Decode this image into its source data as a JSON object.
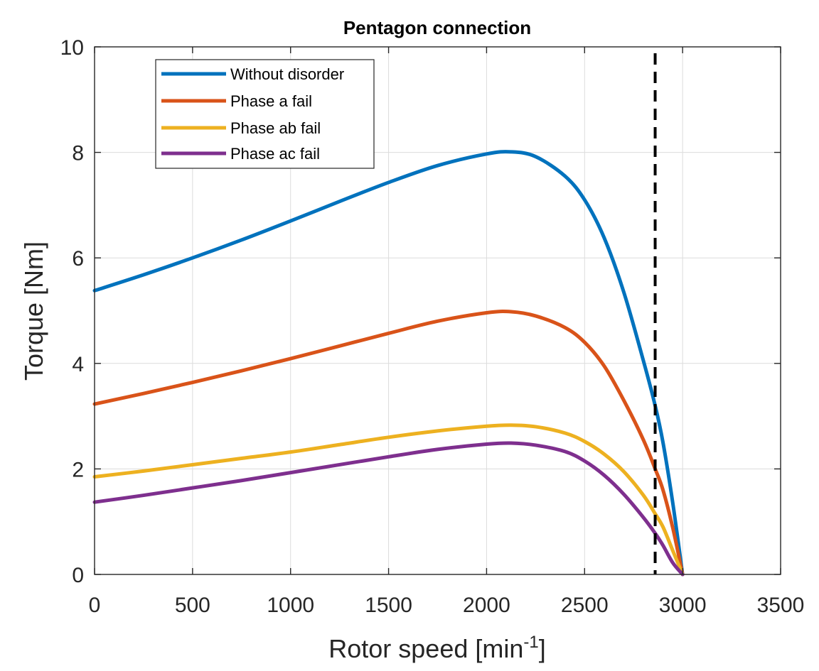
{
  "chart_data": {
    "type": "line",
    "title": "Pentagon connection",
    "xlabel_main": "Rotor speed [min",
    "xlabel_sup": "-1",
    "xlabel_end": "]",
    "ylabel": "Torque [Nm]",
    "xlim": [
      0,
      3500
    ],
    "ylim": [
      0,
      10
    ],
    "x_ticks": [
      0,
      500,
      1000,
      1500,
      2000,
      2500,
      3000,
      3500
    ],
    "y_ticks": [
      0,
      2,
      4,
      6,
      8,
      10
    ],
    "x_tick_labels": [
      "0",
      "500",
      "1000",
      "1500",
      "2000",
      "2500",
      "3000",
      "3500"
    ],
    "y_tick_labels": [
      "0",
      "2",
      "4",
      "6",
      "8",
      "10"
    ],
    "grid": true,
    "legend_position": "top-left",
    "vertical_reference": {
      "x": 2860,
      "style": "dashed",
      "color": "#000000"
    },
    "x": [
      0,
      250,
      500,
      750,
      1000,
      1250,
      1500,
      1750,
      2000,
      2125,
      2250,
      2400,
      2500,
      2600,
      2700,
      2800,
      2860,
      2900,
      2950,
      3000
    ],
    "series": [
      {
        "name": "Without disorder",
        "color": "#0072BD",
        "values": [
          5.38,
          5.68,
          6.0,
          6.34,
          6.7,
          7.07,
          7.43,
          7.75,
          7.97,
          8.01,
          7.92,
          7.55,
          7.1,
          6.38,
          5.35,
          4.05,
          3.2,
          2.5,
          1.35,
          0.0
        ]
      },
      {
        "name": "Phase a fail",
        "color": "#D95319",
        "values": [
          3.23,
          3.43,
          3.64,
          3.86,
          4.09,
          4.33,
          4.57,
          4.8,
          4.96,
          4.98,
          4.9,
          4.68,
          4.4,
          3.95,
          3.3,
          2.55,
          2.0,
          1.6,
          0.88,
          0.0
        ]
      },
      {
        "name": "Phase ab fail",
        "color": "#EDB120",
        "values": [
          1.85,
          1.96,
          2.08,
          2.2,
          2.32,
          2.46,
          2.6,
          2.72,
          2.81,
          2.83,
          2.8,
          2.68,
          2.52,
          2.28,
          1.95,
          1.5,
          1.15,
          0.9,
          0.45,
          0.0
        ]
      },
      {
        "name": "Phase ac fail",
        "color": "#7E2F8E",
        "values": [
          1.37,
          1.5,
          1.64,
          1.78,
          1.93,
          2.08,
          2.23,
          2.37,
          2.47,
          2.49,
          2.45,
          2.33,
          2.15,
          1.88,
          1.52,
          1.08,
          0.78,
          0.55,
          0.22,
          0.0
        ]
      }
    ]
  }
}
